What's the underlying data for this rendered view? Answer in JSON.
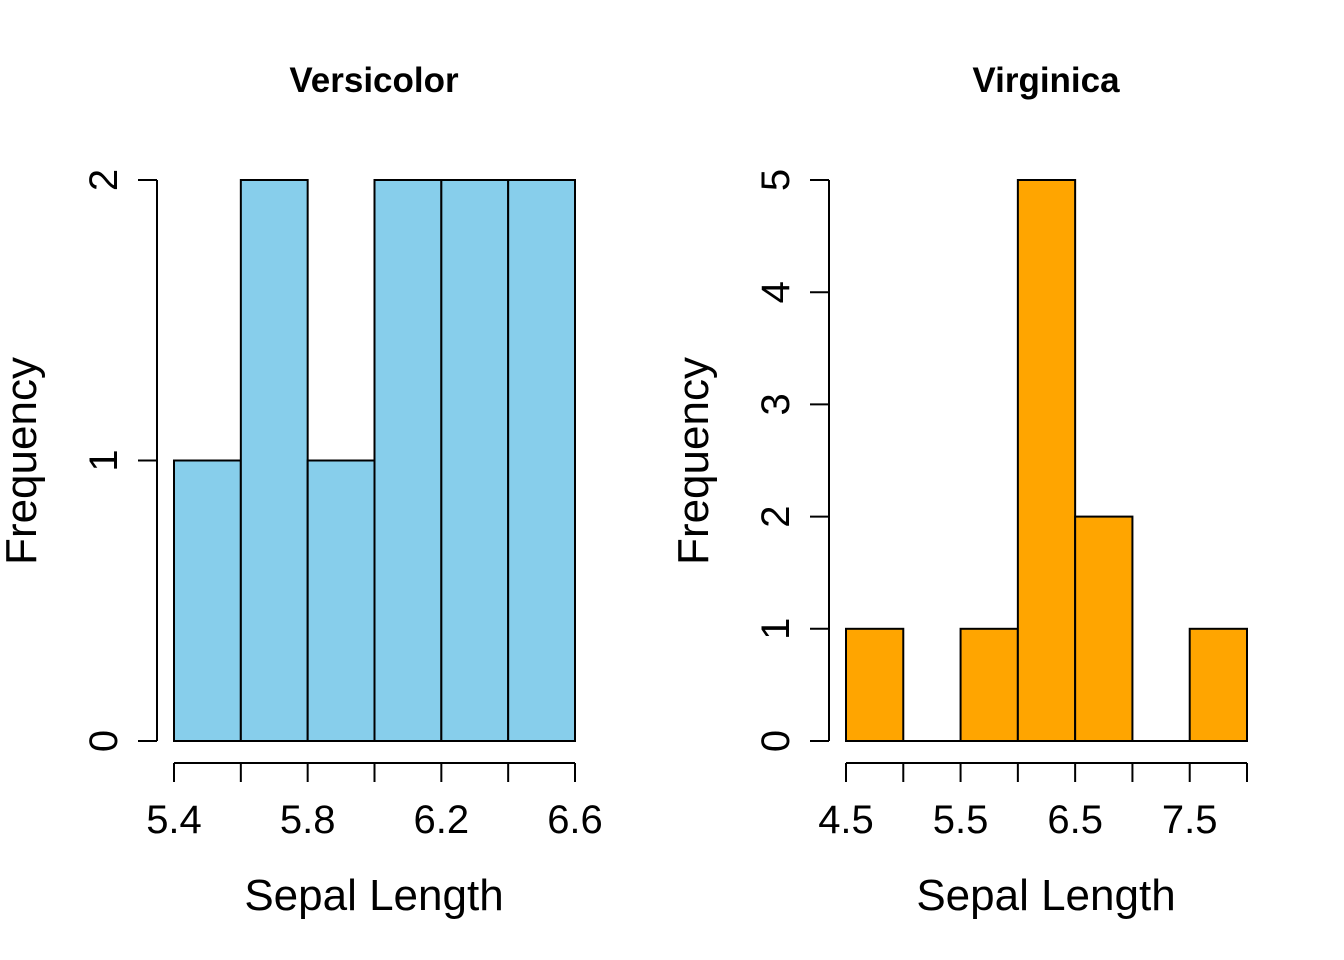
{
  "chart_data": [
    {
      "type": "bar",
      "title": "Versicolor",
      "xlabel": "Sepal Length",
      "ylabel": "Frequency",
      "bar_color": "#87CEEB",
      "bins": [
        [
          5.4,
          5.6
        ],
        [
          5.6,
          5.8
        ],
        [
          5.8,
          6.0
        ],
        [
          6.0,
          6.2
        ],
        [
          6.2,
          6.4
        ],
        [
          6.4,
          6.6
        ]
      ],
      "values": [
        1,
        2,
        1,
        2,
        2,
        2
      ],
      "xlim": [
        5.4,
        6.6
      ],
      "ylim": [
        0,
        2
      ],
      "x_tick_values": [
        5.4,
        5.6,
        5.8,
        6.0,
        6.2,
        6.4,
        6.6
      ],
      "x_tick_labels": [
        "5.4",
        "",
        "5.8",
        "",
        "6.2",
        "",
        "6.6"
      ],
      "y_tick_values": [
        0,
        1,
        2
      ],
      "y_tick_labels": [
        "0",
        "1",
        "2"
      ]
    },
    {
      "type": "bar",
      "title": "Virginica",
      "xlabel": "Sepal Length",
      "ylabel": "Frequency",
      "bar_color": "#FFA500",
      "bins": [
        [
          4.5,
          5.0
        ],
        [
          5.0,
          5.5
        ],
        [
          5.5,
          6.0
        ],
        [
          6.0,
          6.5
        ],
        [
          6.5,
          7.0
        ],
        [
          7.0,
          7.5
        ],
        [
          7.5,
          8.0
        ]
      ],
      "values": [
        1,
        0,
        1,
        5,
        2,
        0,
        1
      ],
      "xlim": [
        4.5,
        8.0
      ],
      "ylim": [
        0,
        5
      ],
      "x_tick_values": [
        4.5,
        5.0,
        5.5,
        6.0,
        6.5,
        7.0,
        7.5,
        8.0
      ],
      "x_tick_labels": [
        "4.5",
        "",
        "5.5",
        "",
        "6.5",
        "",
        "7.5",
        ""
      ],
      "y_tick_values": [
        0,
        1,
        2,
        3,
        4,
        5
      ],
      "y_tick_labels": [
        "0",
        "1",
        "2",
        "3",
        "4",
        "5"
      ]
    }
  ]
}
